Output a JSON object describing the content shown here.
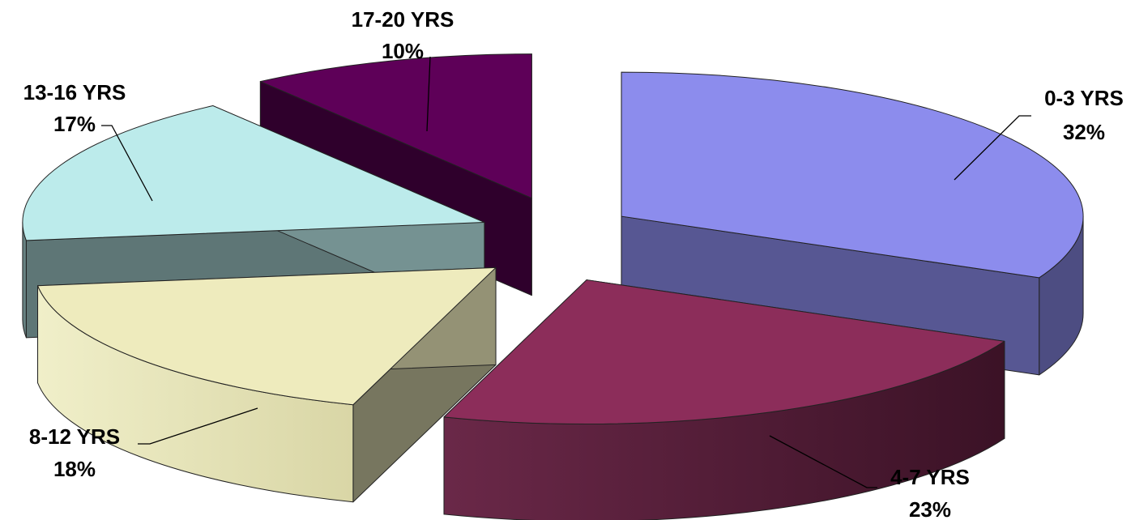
{
  "chart_data": {
    "type": "pie",
    "style": "3d-exploded",
    "title": "",
    "categories": [
      "0-3 YRS",
      "4-7 YRS",
      "8-12 YRS",
      "13-16 YRS",
      "17-20 YRS"
    ],
    "values": [
      32,
      23,
      18,
      17,
      10
    ],
    "value_labels": [
      "32%",
      "23%",
      "18%",
      "17%",
      "10%"
    ],
    "colors": [
      "#8c8ced",
      "#8c2d5a",
      "#eeebbd",
      "#bcebeb",
      "#5e0058"
    ],
    "legend": "none"
  }
}
